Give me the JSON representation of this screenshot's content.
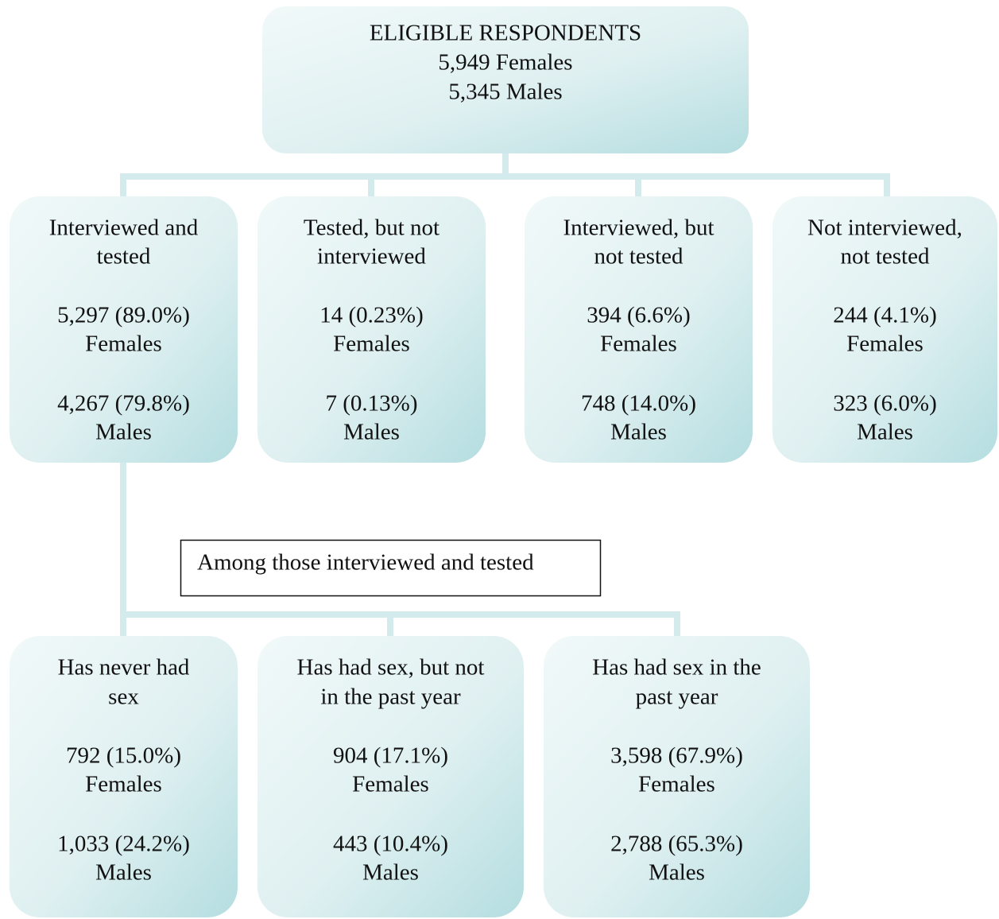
{
  "root": {
    "lines": [
      "ELIGIBLE RESPONDENTS",
      "5,949 Females",
      "5,345 Males"
    ]
  },
  "level1": [
    {
      "title": [
        "Interviewed and",
        "tested"
      ],
      "females": [
        "5,297 (89.0%)",
        "Females"
      ],
      "males": [
        "4,267 (79.8%)",
        "Males"
      ]
    },
    {
      "title": [
        "Tested, but not",
        "interviewed"
      ],
      "females": [
        "14 (0.23%)",
        "Females"
      ],
      "males": [
        "7 (0.13%)",
        "Males"
      ]
    },
    {
      "title": [
        "Interviewed, but",
        "not tested"
      ],
      "females": [
        "394 (6.6%)",
        "Females"
      ],
      "males": [
        "748 (14.0%)",
        "Males"
      ]
    },
    {
      "title": [
        "Not interviewed,",
        "not tested"
      ],
      "females": [
        "244 (4.1%)",
        "Females"
      ],
      "males": [
        "323 (6.0%)",
        "Males"
      ]
    }
  ],
  "note": "Among those interviewed and tested",
  "level2": [
    {
      "title": [
        "Has never had",
        "sex"
      ],
      "females": [
        "792 (15.0%)",
        "Females"
      ],
      "males": [
        "1,033 (24.2%)",
        "Males"
      ]
    },
    {
      "title": [
        "Has had sex, but not",
        "in the past year"
      ],
      "females": [
        "904 (17.1%)",
        "Females"
      ],
      "males": [
        "443 (10.4%)",
        "Males"
      ]
    },
    {
      "title": [
        "Has had sex in the",
        "past year"
      ],
      "females": [
        "3,598 (67.9%)",
        "Females"
      ],
      "males": [
        "2,788 (65.3%)",
        "Males"
      ]
    }
  ]
}
